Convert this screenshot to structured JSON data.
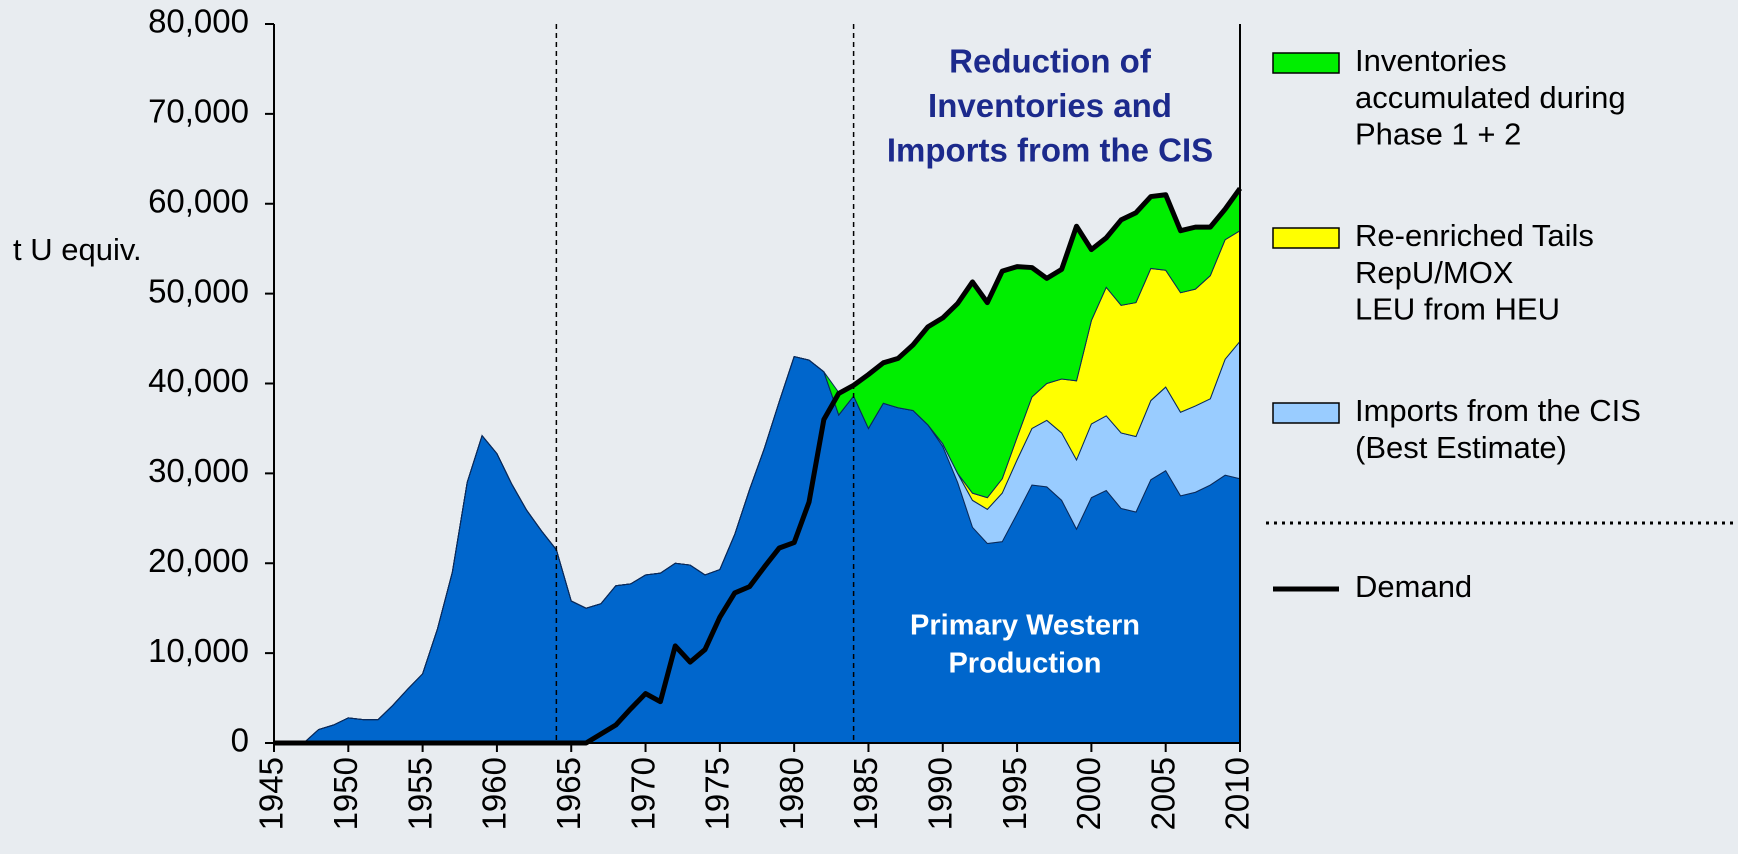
{
  "chart_data": {
    "type": "stacked_area",
    "y_label": "t U equiv.",
    "annotations": {
      "top": [
        "Reduction of",
        "Inventories and",
        "Imports from the CIS"
      ]
    },
    "x": [
      1945,
      1946,
      1947,
      1948,
      1949,
      1950,
      1951,
      1952,
      1953,
      1954,
      1955,
      1956,
      1957,
      1958,
      1959,
      1960,
      1961,
      1962,
      1963,
      1964,
      1965,
      1966,
      1967,
      1968,
      1969,
      1970,
      1971,
      1972,
      1973,
      1974,
      1975,
      1976,
      1977,
      1978,
      1979,
      1980,
      1981,
      1982,
      1983,
      1984,
      1985,
      1986,
      1987,
      1988,
      1989,
      1990,
      1991,
      1992,
      1993,
      1994,
      1995,
      1996,
      1997,
      1998,
      1999,
      2000,
      2001,
      2002,
      2003,
      2004,
      2005,
      2006,
      2007,
      2008,
      2009,
      2010
    ],
    "series": [
      {
        "name": [
          "Primary Western",
          "Production"
        ],
        "color": "#0066cc",
        "legend": false,
        "values": [
          0,
          0,
          0,
          1500,
          2000,
          2800,
          2600,
          2600,
          4200,
          6000,
          7700,
          12700,
          19000,
          29000,
          34200,
          32200,
          28800,
          25900,
          23600,
          21500,
          15800,
          15000,
          15500,
          17500,
          17700,
          18700,
          18900,
          20000,
          19800,
          18700,
          19300,
          23200,
          28200,
          32800,
          38000,
          43000,
          42600,
          41300,
          36500,
          38600,
          35000,
          37800,
          37300,
          37000,
          35400,
          33000,
          29000,
          24000,
          22200,
          22400,
          25500,
          28700,
          28500,
          27000,
          23800,
          27300,
          28100,
          26100,
          25700,
          29300,
          30300,
          27500,
          27900,
          28700,
          29800,
          29400
        ]
      },
      {
        "name": [
          "Imports from the CIS",
          "(Best Estimate)"
        ],
        "color": "#99ccff",
        "legend": true,
        "values": [
          0,
          0,
          0,
          0,
          0,
          0,
          0,
          0,
          0,
          0,
          0,
          0,
          0,
          0,
          0,
          0,
          0,
          0,
          0,
          0,
          0,
          0,
          0,
          0,
          0,
          0,
          0,
          0,
          0,
          0,
          0,
          0,
          0,
          0,
          0,
          0,
          0,
          0,
          0,
          0,
          0,
          0,
          0,
          0,
          0,
          300,
          1000,
          3000,
          3800,
          5400,
          6000,
          6300,
          7400,
          7500,
          7700,
          8200,
          8300,
          8400,
          8400,
          8800,
          9300,
          9300,
          9600,
          9600,
          12900,
          15300
        ]
      },
      {
        "name": [
          "Re-enriched Tails",
          "RepU/MOX",
          "LEU from HEU"
        ],
        "color": "#ffff00",
        "legend": true,
        "values": [
          0,
          0,
          0,
          0,
          0,
          0,
          0,
          0,
          0,
          0,
          0,
          0,
          0,
          0,
          0,
          0,
          0,
          0,
          0,
          0,
          0,
          0,
          0,
          0,
          0,
          0,
          0,
          0,
          0,
          0,
          0,
          0,
          0,
          0,
          0,
          0,
          0,
          0,
          0,
          0,
          0,
          0,
          0,
          0,
          0,
          0,
          0,
          800,
          1300,
          1600,
          2500,
          3500,
          4100,
          6000,
          8800,
          11500,
          14300,
          14200,
          14900,
          14700,
          13000,
          13300,
          13000,
          13700,
          13300,
          12300
        ]
      },
      {
        "name": [
          "Inventories",
          "accumulated during",
          "Phase 1 + 2"
        ],
        "color": "#00ee00",
        "legend": true,
        "values": [
          0,
          0,
          0,
          0,
          0,
          0,
          0,
          0,
          0,
          0,
          0,
          0,
          0,
          0,
          0,
          0,
          0,
          0,
          0,
          0,
          0,
          0,
          0,
          0,
          0,
          0,
          0,
          0,
          0,
          0,
          0,
          0,
          0,
          0,
          0,
          0,
          0,
          0,
          2500,
          1200,
          6000,
          4500,
          5500,
          7300,
          10900,
          14000,
          18900,
          23500,
          21700,
          23100,
          19000,
          14400,
          11700,
          12200,
          17200,
          7900,
          5500,
          9500,
          10000,
          8000,
          8400,
          6900,
          6900,
          5400,
          3400,
          4700
        ]
      }
    ],
    "line_series": {
      "name": "Demand",
      "color": "#000000",
      "values": [
        0,
        0,
        0,
        0,
        0,
        0,
        0,
        0,
        0,
        0,
        0,
        0,
        0,
        0,
        0,
        0,
        0,
        0,
        0,
        0,
        0,
        0,
        1000,
        2000,
        3800,
        5500,
        4600,
        10800,
        9000,
        10400,
        14000,
        16700,
        17400,
        19600,
        21700,
        22300,
        26800,
        36000,
        38900,
        39800,
        41000,
        42300,
        42800,
        44300,
        46300,
        47300,
        48900,
        51300,
        49000,
        52500,
        53000,
        52900,
        51700,
        52700,
        57500,
        54900,
        56200,
        58200,
        59000,
        60800,
        61000,
        57000,
        57400,
        57400,
        59400,
        61700
      ]
    },
    "vlines": [
      1964,
      1984
    ],
    "xlim": [
      1945,
      2010
    ],
    "xticks": [
      1945,
      1950,
      1955,
      1960,
      1965,
      1970,
      1975,
      1980,
      1985,
      1990,
      1995,
      2000,
      2005,
      2010
    ],
    "ylim": [
      0,
      80000
    ],
    "yticks": [
      {
        "value": 0,
        "label": "0"
      },
      {
        "value": 10000,
        "label": "10,000"
      },
      {
        "value": 20000,
        "label": "20,000"
      },
      {
        "value": 30000,
        "label": "30,000"
      },
      {
        "value": 40000,
        "label": "40,000"
      },
      {
        "value": 50000,
        "label": "50,000"
      },
      {
        "value": 60000,
        "label": "60,000"
      },
      {
        "value": 70000,
        "label": "70,000"
      },
      {
        "value": 80000,
        "label": "80,000"
      }
    ],
    "legend": "right"
  }
}
